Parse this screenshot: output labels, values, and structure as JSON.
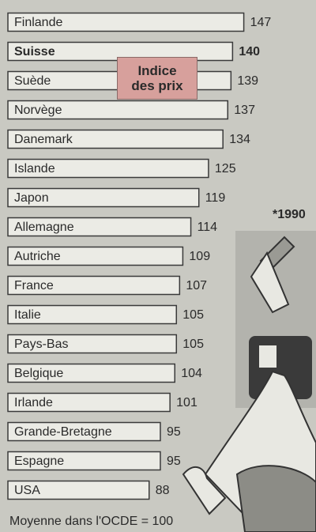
{
  "chart_data": {
    "type": "barh",
    "title": "Indice des prix",
    "note": "*1990",
    "footer": "Moyenne dans l'OCDE = 100",
    "categories": [
      "Finlande",
      "Suisse",
      "Suède",
      "Norvège",
      "Danemark",
      "Islande",
      "Japon",
      "Allemagne",
      "Autriche",
      "France",
      "Italie",
      "Pays-Bas",
      "Belgique",
      "Irlande",
      "Grande-Bretagne",
      "Espagne",
      "USA"
    ],
    "values": [
      147,
      140,
      139,
      137,
      134,
      125,
      119,
      114,
      109,
      107,
      105,
      105,
      104,
      101,
      95,
      95,
      88
    ],
    "highlight": "Suisse",
    "color": "#ebebe5",
    "edge_color": "#3a3a3a",
    "xlim": [
      0,
      192
    ]
  }
}
